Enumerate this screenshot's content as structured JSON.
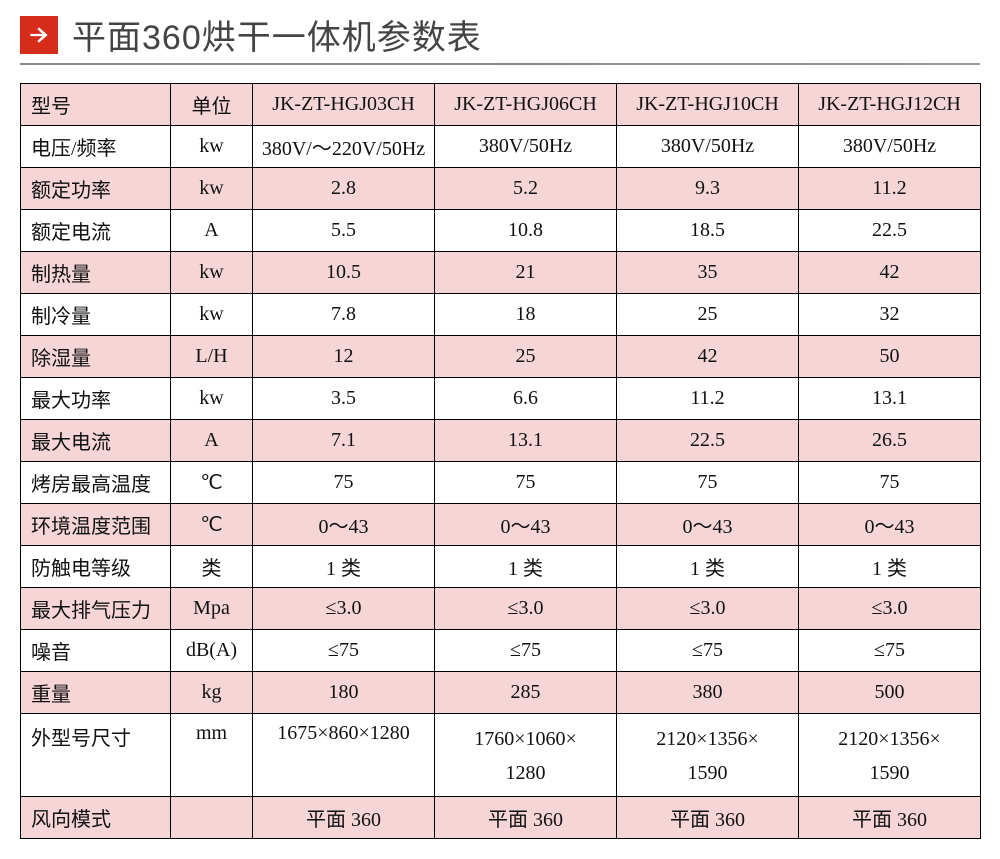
{
  "title": "平面360烘干一体机参数表",
  "colors": {
    "accent": "#d62c1a",
    "row_stripe": "#f5d5d6",
    "border": "#000000",
    "title_text": "#444444",
    "underline": "#888888"
  },
  "table": {
    "header": {
      "param_label": "型号",
      "unit_label": "单位",
      "models": [
        "JK-ZT-HGJ03CH",
        "JK-ZT-HGJ06CH",
        "JK-ZT-HGJ10CH",
        "JK-ZT-HGJ12CH"
      ]
    },
    "rows": [
      {
        "param": "电压/频率",
        "unit": "kw",
        "values": [
          "380V/～220V/50Hz",
          "380V/50Hz",
          "380V/50Hz",
          "380V/50Hz"
        ],
        "stripe": false
      },
      {
        "param": "额定功率",
        "unit": "kw",
        "values": [
          "2.8",
          "5.2",
          "9.3",
          "11.2"
        ],
        "stripe": true
      },
      {
        "param": "额定电流",
        "unit": "A",
        "values": [
          "5.5",
          "10.8",
          "18.5",
          "22.5"
        ],
        "stripe": false
      },
      {
        "param": "制热量",
        "unit": "kw",
        "values": [
          "10.5",
          "21",
          "35",
          "42"
        ],
        "stripe": true
      },
      {
        "param": "制冷量",
        "unit": "kw",
        "values": [
          "7.8",
          "18",
          "25",
          "32"
        ],
        "stripe": false
      },
      {
        "param": "除湿量",
        "unit": "L/H",
        "values": [
          "12",
          "25",
          "42",
          "50"
        ],
        "stripe": true
      },
      {
        "param": "最大功率",
        "unit": "kw",
        "values": [
          "3.5",
          "6.6",
          "11.2",
          "13.1"
        ],
        "stripe": false
      },
      {
        "param": "最大电流",
        "unit": "A",
        "values": [
          "7.1",
          "13.1",
          "22.5",
          "26.5"
        ],
        "stripe": true
      },
      {
        "param": "烤房最高温度",
        "unit": "℃",
        "values": [
          "75",
          "75",
          "75",
          "75"
        ],
        "stripe": false
      },
      {
        "param": "环境温度范围",
        "unit": "℃",
        "values": [
          "0～43",
          "0～43",
          "0～43",
          "0～43"
        ],
        "stripe": true
      },
      {
        "param": "防触电等级",
        "unit": "类",
        "values": [
          "1 类",
          "1 类",
          "1 类",
          "1 类"
        ],
        "stripe": false
      },
      {
        "param": "最大排气压力",
        "unit": "Mpa",
        "values": [
          "≤3.0",
          "≤3.0",
          "≤3.0",
          "≤3.0"
        ],
        "stripe": true
      },
      {
        "param": "噪音",
        "unit": "dB(A)",
        "values": [
          "≤75",
          "≤75",
          "≤75",
          "≤75"
        ],
        "stripe": false
      },
      {
        "param": "重量",
        "unit": "kg",
        "values": [
          "180",
          "285",
          "380",
          "500"
        ],
        "stripe": true
      },
      {
        "param": "外型号尺寸",
        "unit": "mm",
        "values": [
          "1675×860×1280",
          "1760×1060×\n1280",
          "2120×1356×\n1590",
          "2120×1356×\n1590"
        ],
        "stripe": false,
        "tall": true
      },
      {
        "param": "风向模式",
        "unit": "",
        "values": [
          "平面 360",
          "平面 360",
          "平面 360",
          "平面 360"
        ],
        "stripe": true
      }
    ]
  }
}
